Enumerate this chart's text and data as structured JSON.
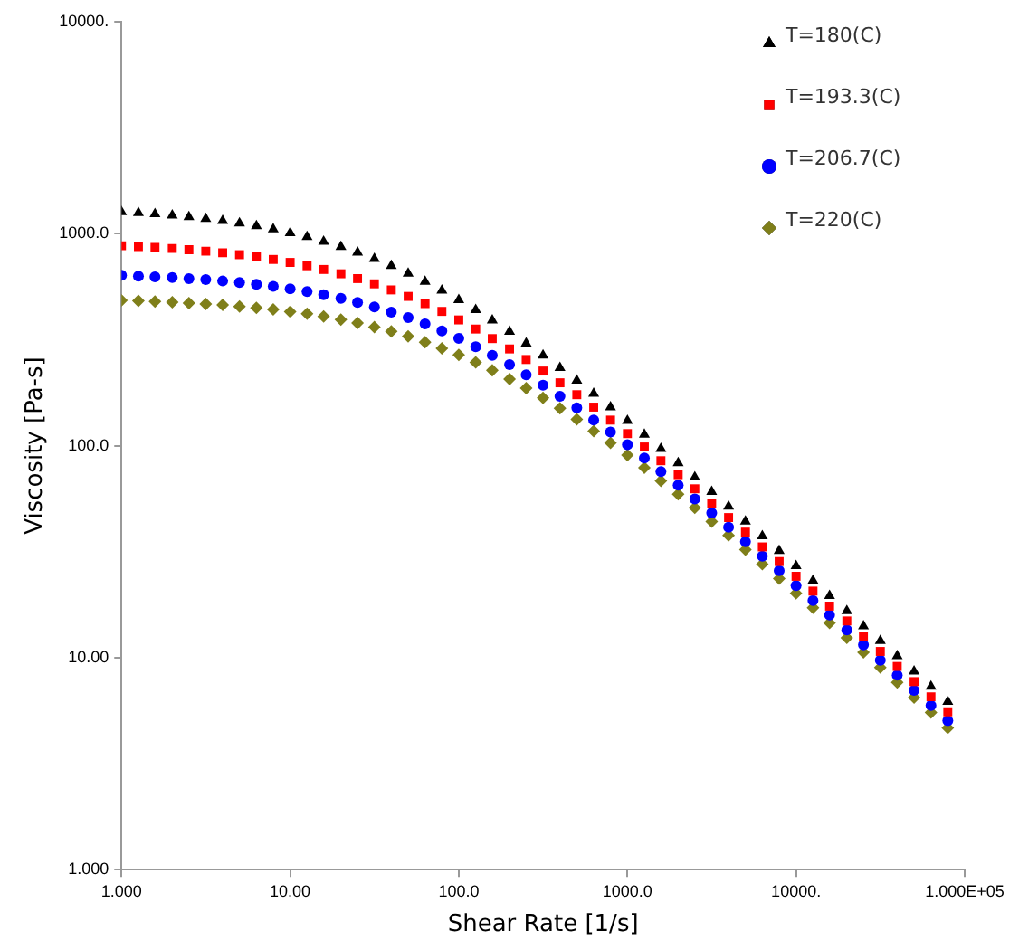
{
  "chart_data": {
    "type": "scatter",
    "xlabel": "Shear Rate [1/s]",
    "ylabel": "Viscosity [Pa-s]",
    "log": "xy",
    "grid": false,
    "legend": "top right",
    "xlim": [
      1,
      100000
    ],
    "ylim": [
      1,
      10000
    ],
    "xticks": [
      {
        "value": 1,
        "label": "1.000"
      },
      {
        "value": 10,
        "label": "10.00"
      },
      {
        "value": 100,
        "label": "100.0"
      },
      {
        "value": 1000,
        "label": "1000.0"
      },
      {
        "value": 10000,
        "label": "10000."
      },
      {
        "value": 100000,
        "label": "1.000E+05"
      }
    ],
    "yticks": [
      {
        "value": 1,
        "label": "1.000"
      },
      {
        "value": 10,
        "label": "10.00"
      },
      {
        "value": 100,
        "label": "100.0"
      },
      {
        "value": 1000,
        "label": "1000.0"
      },
      {
        "value": 10000,
        "label": "10000."
      }
    ],
    "x": [
      1,
      1.26,
      1.58,
      2,
      2.51,
      3.16,
      3.98,
      5.01,
      6.31,
      7.94,
      10,
      12.6,
      15.8,
      20,
      25.1,
      31.6,
      39.8,
      50.1,
      63.1,
      79.4,
      100,
      126,
      158,
      200,
      251,
      316,
      398,
      501,
      631,
      794,
      1000,
      1260,
      1580,
      2000,
      2510,
      3160,
      3980,
      5010,
      6310,
      7940,
      10000,
      12600,
      15800,
      20000,
      25100,
      31600,
      39800,
      50100,
      63100,
      79400
    ],
    "series": [
      {
        "name": "T=180(C)",
        "color": "#000000",
        "marker": "triangle",
        "values": [
          1268,
          1255,
          1239,
          1221,
          1200,
          1177,
          1150,
          1120,
          1087,
          1050,
          1009,
          966,
          918,
          868,
          816,
          762,
          706,
          650,
          595,
          540,
          487,
          437,
          390,
          345,
          304,
          267,
          233,
          203,
          176,
          152,
          131,
          113,
          96.8,
          82.9,
          70.9,
          60.6,
          51.7,
          44.0,
          37.5,
          31.9,
          27.1,
          23.1,
          19.6,
          16.6,
          14.1,
          12.0,
          10.2,
          8.62,
          7.31,
          6.2
        ]
      },
      {
        "name": "T=193.3(C)",
        "color": "#ff0000",
        "marker": "square",
        "values": [
          877,
          870,
          861,
          852,
          840,
          827,
          813,
          796,
          777,
          756,
          732,
          706,
          678,
          647,
          614,
          580,
          543,
          506,
          468,
          430,
          392,
          355,
          320,
          286,
          255,
          225,
          198,
          174,
          152,
          132,
          114,
          98.6,
          84.9,
          73.0,
          62.6,
          53.6,
          45.8,
          39.1,
          33.3,
          28.4,
          24.2,
          20.6,
          17.5,
          14.9,
          12.6,
          10.7,
          9.09,
          7.71,
          6.54,
          5.55
        ]
      },
      {
        "name": "T=206.7(C)",
        "color": "#0000ff",
        "marker": "circle",
        "values": [
          636,
          631,
          626,
          621,
          614,
          607,
          598,
          588,
          577,
          564,
          549,
          533,
          515,
          496,
          474,
          451,
          427,
          402,
          375,
          348,
          321,
          293,
          267,
          241,
          216,
          193,
          171,
          151,
          132,
          116,
          101,
          87.4,
          75.5,
          65.1,
          56.0,
          48.1,
          41.2,
          35.2,
          30.1,
          25.7,
          21.9,
          18.6,
          15.9,
          13.5,
          11.5,
          9.73,
          8.27,
          7.02,
          5.95,
          5.05
        ]
      },
      {
        "name": "T=220(C)",
        "color": "#7f7f1a",
        "marker": "diamond",
        "values": [
          485,
          482,
          479,
          475,
          471,
          466,
          461,
          454,
          447,
          439,
          429,
          419,
          407,
          393,
          379,
          363,
          346,
          328,
          308,
          288,
          268,
          247,
          227,
          206,
          187,
          168,
          150,
          133,
          117,
          103,
          90.2,
          78.6,
          68.2,
          59.0,
          50.9,
          43.8,
          37.7,
          32.3,
          27.6,
          23.6,
          20.1,
          17.2,
          14.6,
          12.4,
          10.6,
          8.99,
          7.64,
          6.49,
          5.51,
          4.67
        ]
      }
    ]
  }
}
